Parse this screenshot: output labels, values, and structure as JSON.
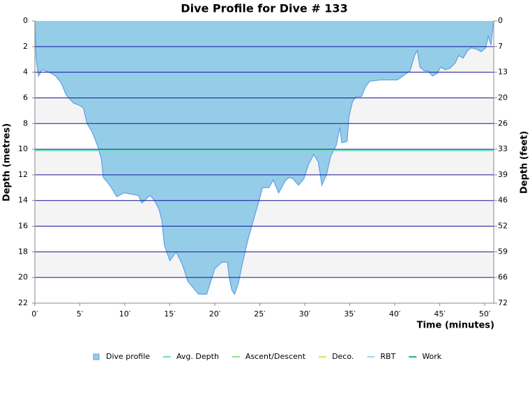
{
  "chart_data": {
    "type": "area",
    "title": "Dive Profile for Dive # 133",
    "y_label": "Depth (metres)",
    "y2_label": "Depth (feet)",
    "x_label": "Time (minutes)",
    "xlim": [
      0,
      51
    ],
    "ylim": [
      0,
      22
    ],
    "y_inverted": true,
    "y2lim": [
      0,
      72.18
    ],
    "xticks": [
      {
        "value": 0,
        "label": "0′"
      },
      {
        "value": 5,
        "label": "5′"
      },
      {
        "value": 10,
        "label": "10′"
      },
      {
        "value": 15,
        "label": "15′"
      },
      {
        "value": 20,
        "label": "20′"
      },
      {
        "value": 25,
        "label": "25′"
      },
      {
        "value": 30,
        "label": "30′"
      },
      {
        "value": 35,
        "label": "35′"
      },
      {
        "value": 40,
        "label": "40′"
      },
      {
        "value": 45,
        "label": "45′"
      },
      {
        "value": 50,
        "label": "50′"
      }
    ],
    "yticks": [
      0,
      2,
      4,
      6,
      8,
      10,
      12,
      14,
      16,
      18,
      20,
      22
    ],
    "y2ticks": [
      0,
      {
        "value": 6.56,
        "label": "7"
      },
      {
        "value": 13.12,
        "label": "13"
      },
      {
        "value": 19.69,
        "label": "20"
      },
      {
        "value": 26.25,
        "label": "26"
      },
      {
        "value": 32.81,
        "label": "33"
      },
      {
        "value": 39.37,
        "label": "39"
      },
      {
        "value": 45.93,
        "label": "46"
      },
      {
        "value": 52.49,
        "label": "52"
      },
      {
        "value": 59.06,
        "label": "59"
      },
      {
        "value": 65.62,
        "label": "66"
      },
      {
        "value": 72.18,
        "label": "72"
      }
    ],
    "grid": true,
    "series": [
      {
        "name": "Dive profile",
        "color": "#95cde8",
        "x": [
          0,
          0.15,
          0.4,
          0.8,
          1.6,
          2.3,
          2.9,
          3.5,
          4.3,
          5.0,
          5.4,
          5.8,
          6.4,
          7.0,
          7.4,
          7.6,
          8.1,
          8.5,
          9.1,
          9.9,
          11.5,
          11.9,
          12.8,
          13.3,
          13.8,
          14.1,
          14.4,
          15.0,
          15.7,
          16.4,
          17.0,
          18.2,
          19.1,
          20.0,
          20.8,
          21.4,
          21.6,
          21.9,
          22.2,
          22.6,
          23.1,
          23.7,
          24.3,
          25.0,
          25.3,
          26.0,
          26.5,
          27.1,
          27.8,
          28.2,
          28.7,
          29.3,
          29.9,
          30.4,
          31.0,
          31.5,
          31.9,
          32.4,
          32.9,
          33.5,
          33.9,
          34.1,
          34.7,
          34.9,
          35.3,
          35.7,
          36.3,
          36.7,
          37.2,
          38.4,
          40.3,
          41.1,
          41.7,
          42.2,
          42.5,
          42.8,
          43.3,
          43.7,
          44.2,
          44.7,
          45.1,
          45.6,
          46.1,
          46.7,
          47.1,
          47.6,
          48.1,
          48.5,
          49.1,
          49.6,
          50.1,
          50.4,
          50.7,
          50.9,
          51.0
        ],
        "values": [
          0,
          3.0,
          4.3,
          3.8,
          4.0,
          4.3,
          4.8,
          5.8,
          6.4,
          6.6,
          6.8,
          8.0,
          8.7,
          9.8,
          10.8,
          12.2,
          12.6,
          13.0,
          13.7,
          13.4,
          13.6,
          14.2,
          13.6,
          14.0,
          14.7,
          15.5,
          17.5,
          18.7,
          18.0,
          19.0,
          20.3,
          21.3,
          21.3,
          19.3,
          18.8,
          18.8,
          20.0,
          21.0,
          21.3,
          20.5,
          18.8,
          17.0,
          15.5,
          13.8,
          13.0,
          13.0,
          12.4,
          13.4,
          12.5,
          12.2,
          12.3,
          12.8,
          12.3,
          11.2,
          10.4,
          11.0,
          12.8,
          12.0,
          10.5,
          9.7,
          8.3,
          9.5,
          9.4,
          7.5,
          6.3,
          5.9,
          5.9,
          5.2,
          4.7,
          4.6,
          4.6,
          4.2,
          3.9,
          2.7,
          2.3,
          3.6,
          3.9,
          3.9,
          4.3,
          4.1,
          3.6,
          3.8,
          3.7,
          3.3,
          2.7,
          2.9,
          2.3,
          2.1,
          2.2,
          2.4,
          2.1,
          1.2,
          1.9,
          0.5,
          0
        ]
      },
      {
        "name": "Avg. Depth",
        "color": "#6fdcc0",
        "values": [
          10.1
        ]
      },
      {
        "name": "Ascent/Descent",
        "color": "#8fe08f"
      },
      {
        "name": "Deco.",
        "color": "#d8e070"
      },
      {
        "name": "RBT",
        "color": "#9dd6f0"
      },
      {
        "name": "Work",
        "color": "#2aa88c"
      }
    ]
  }
}
